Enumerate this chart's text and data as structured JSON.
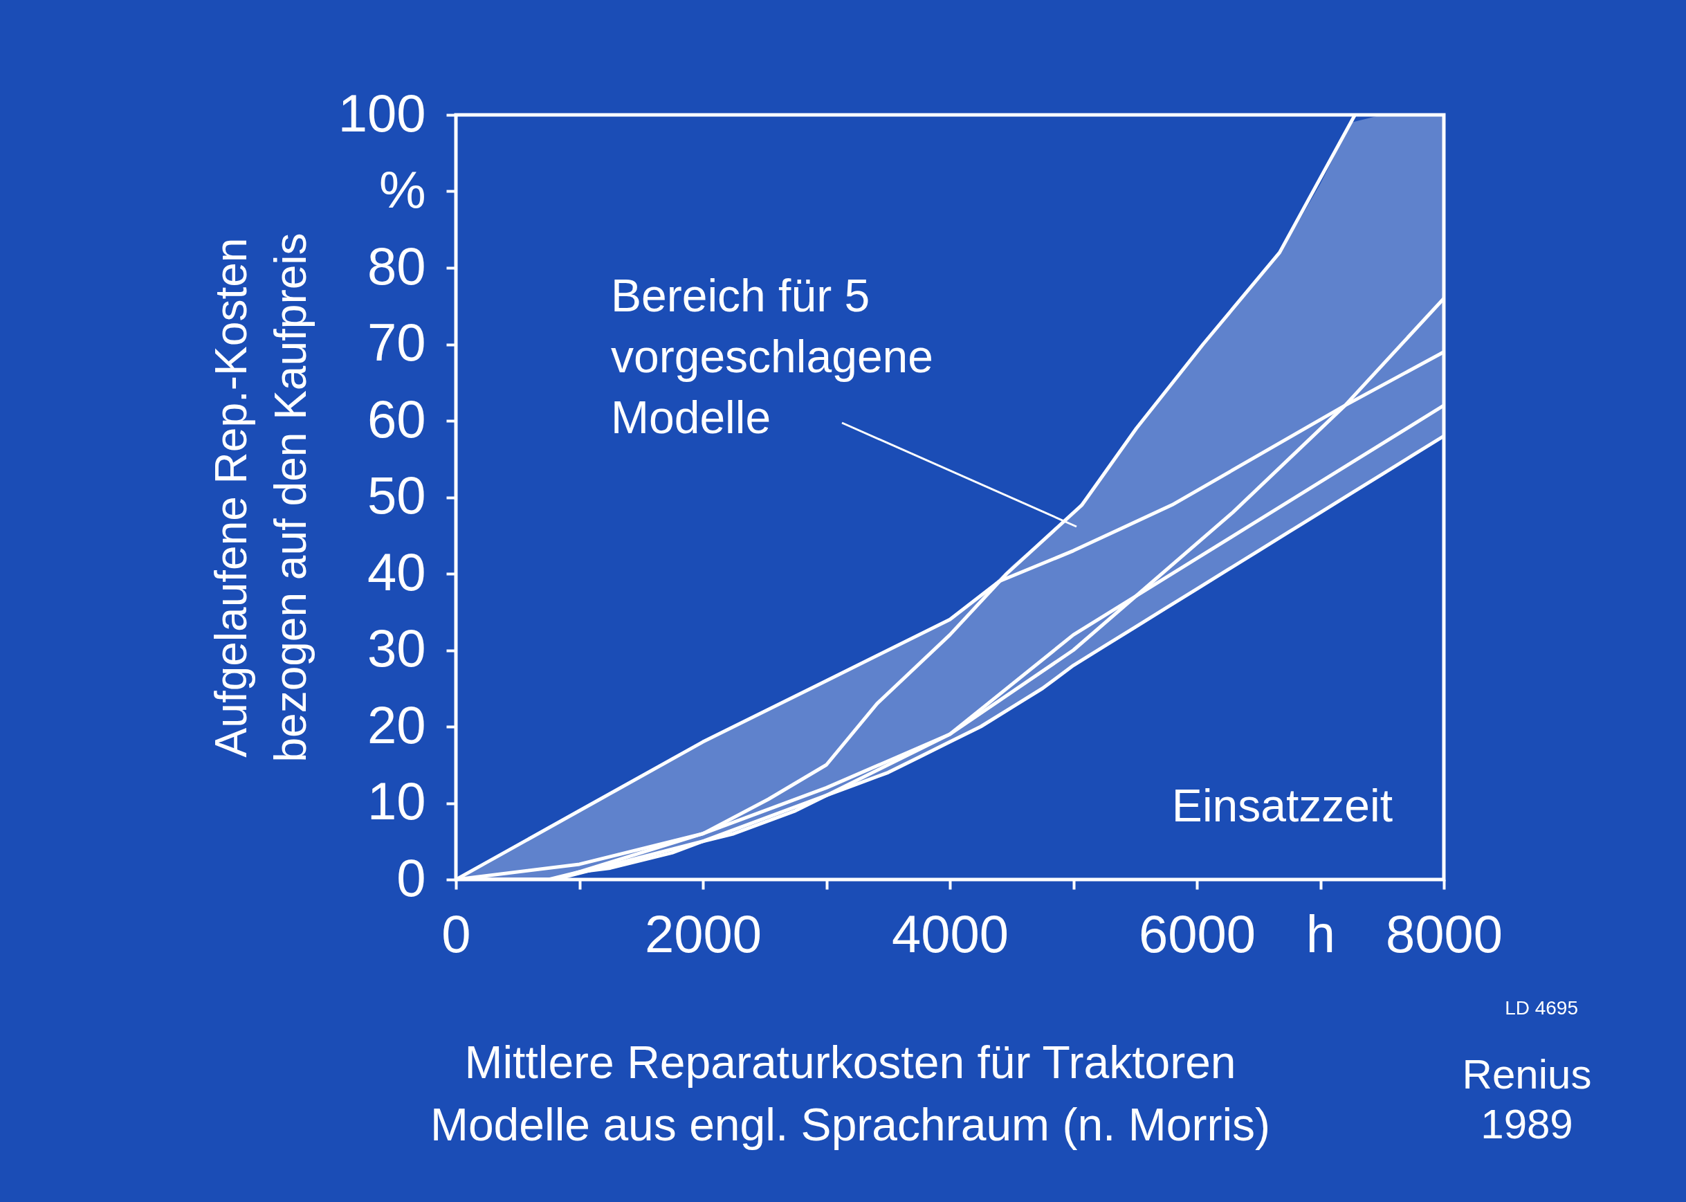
{
  "chart_data": {
    "type": "line",
    "title": "Mittlere Reparaturkosten für Traktoren",
    "subtitle": "Modelle aus engl. Sprachraum (n. Morris)",
    "xlabel": "Einsatzzeit",
    "ylabel": "Aufgelaufene Rep.-Kosten\nbezogen auf den Kaufpreis",
    "xlim": [
      0,
      8000
    ],
    "ylim": [
      0,
      100
    ],
    "xticks": [
      0,
      {
        "value": 1000,
        "label": null
      },
      2000,
      {
        "value": 3000,
        "label": null
      },
      4000,
      {
        "value": 5000,
        "label": null
      },
      6000,
      {
        "value": 7000,
        "label": "h"
      },
      8000
    ],
    "yticks": [
      0,
      10,
      20,
      30,
      40,
      50,
      60,
      70,
      80,
      {
        "value": 90,
        "label": "%"
      },
      100
    ],
    "grid": false,
    "marker": "none",
    "line_style": "solid",
    "series": [
      {
        "color": "#ffffff",
        "x": [
          0,
          1000,
          2000,
          3000,
          4000,
          4400,
          5000,
          5800,
          7200,
          8000
        ],
        "values": [
          0,
          9,
          18,
          26,
          34,
          39,
          43,
          49,
          62,
          69
        ]
      },
      {
        "color": "#ffffff",
        "x": [
          0,
          1000,
          2000,
          2530,
          3000,
          3410,
          4000,
          4460,
          5070,
          5510,
          6050,
          6670,
          7280
        ],
        "values": [
          0,
          2,
          6,
          10.5,
          15,
          23,
          32,
          40,
          49,
          59,
          70,
          82,
          100
        ]
      },
      {
        "color": "#ffffff",
        "x": [
          0,
          800,
          2000,
          3000,
          4000,
          5000,
          6290,
          7200,
          8000
        ],
        "values": [
          0,
          0,
          5,
          11,
          19,
          30,
          48,
          62,
          76
        ]
      },
      {
        "color": "#ffffff",
        "x": [
          0,
          800,
          2000,
          3000,
          4000,
          5000,
          6000,
          7000,
          8000
        ],
        "values": [
          0,
          0,
          6,
          12,
          19,
          32,
          42,
          52,
          62
        ]
      },
      {
        "color": "#ffffff",
        "x": [
          0,
          250,
          500,
          750,
          1000,
          1250,
          1500,
          1750,
          2000,
          2250,
          2500,
          2750,
          3000,
          3250,
          3500,
          3750,
          4000,
          4250,
          4500,
          4750,
          5000,
          5250,
          5500,
          5750,
          6000,
          6250,
          6500,
          6750,
          7000,
          7250,
          7500,
          7750,
          8000
        ],
        "values": [
          0,
          0,
          0,
          0,
          1,
          1.5,
          2.5,
          3.5,
          5,
          6,
          7.5,
          9,
          11,
          12.5,
          14,
          16,
          18,
          20,
          22.5,
          25,
          28,
          30.5,
          33,
          35.5,
          38,
          40.5,
          43,
          45.5,
          48,
          50.5,
          53,
          55.5,
          58
        ],
        "lower": [
          0,
          0,
          0,
          0,
          1,
          1.5,
          2.5,
          3.5,
          5,
          6,
          7.5,
          9,
          11,
          12.5,
          14,
          16,
          18,
          20,
          22.5,
          25,
          28,
          30.5,
          33,
          35.5,
          38,
          40.5,
          43,
          45.5,
          48,
          50.5,
          53,
          55.5,
          58
        ],
        "upper": [
          0,
          2,
          4.5,
          7,
          9,
          11,
          13.5,
          16,
          18,
          20,
          22,
          24,
          26,
          28,
          30,
          32,
          34,
          37,
          41,
          44.5,
          48,
          53,
          58.5,
          64,
          69,
          74,
          78.5,
          84,
          91,
          99,
          100,
          100,
          100
        ]
      }
    ],
    "annotations": [
      "Bereich für 5\nvorgeschlagene\nModelle",
      "LD 4695",
      "Renius\n1989"
    ]
  }
}
